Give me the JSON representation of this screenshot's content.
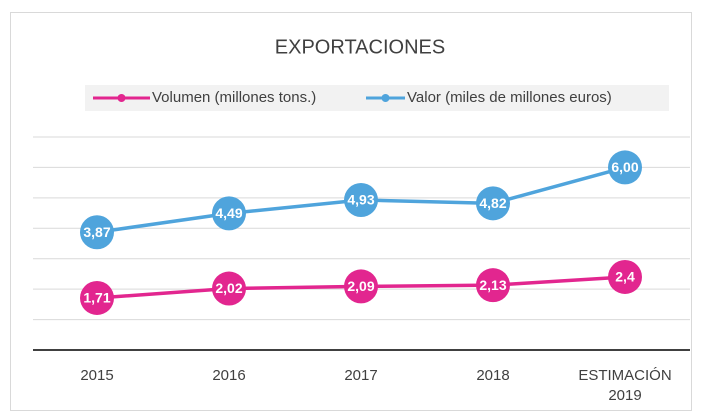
{
  "chart_data": {
    "type": "line",
    "title": "EXPORTACIONES",
    "categories": [
      "2015",
      "2016",
      "2017",
      "2018",
      "ESTIMACIÓN 2019"
    ],
    "series": [
      {
        "name": "Volumen (millones tons.)",
        "color": "#e2268f",
        "values": [
          1.71,
          2.02,
          2.09,
          2.13,
          2.4
        ],
        "value_labels": [
          "1,71",
          "2,02",
          "2,09",
          "2,13",
          "2,4"
        ]
      },
      {
        "name": "Valor (miles de millones euros)",
        "color": "#4fa4dc",
        "values": [
          3.87,
          4.49,
          4.93,
          4.82,
          6.0
        ],
        "value_labels": [
          "3,87",
          "4,49",
          "4,93",
          "4,82",
          "6,00"
        ]
      }
    ],
    "ylim": [
      0,
      7
    ],
    "yticks": [
      0,
      1,
      2,
      3,
      4,
      5,
      6,
      7
    ],
    "grid": true,
    "legend": "top"
  }
}
